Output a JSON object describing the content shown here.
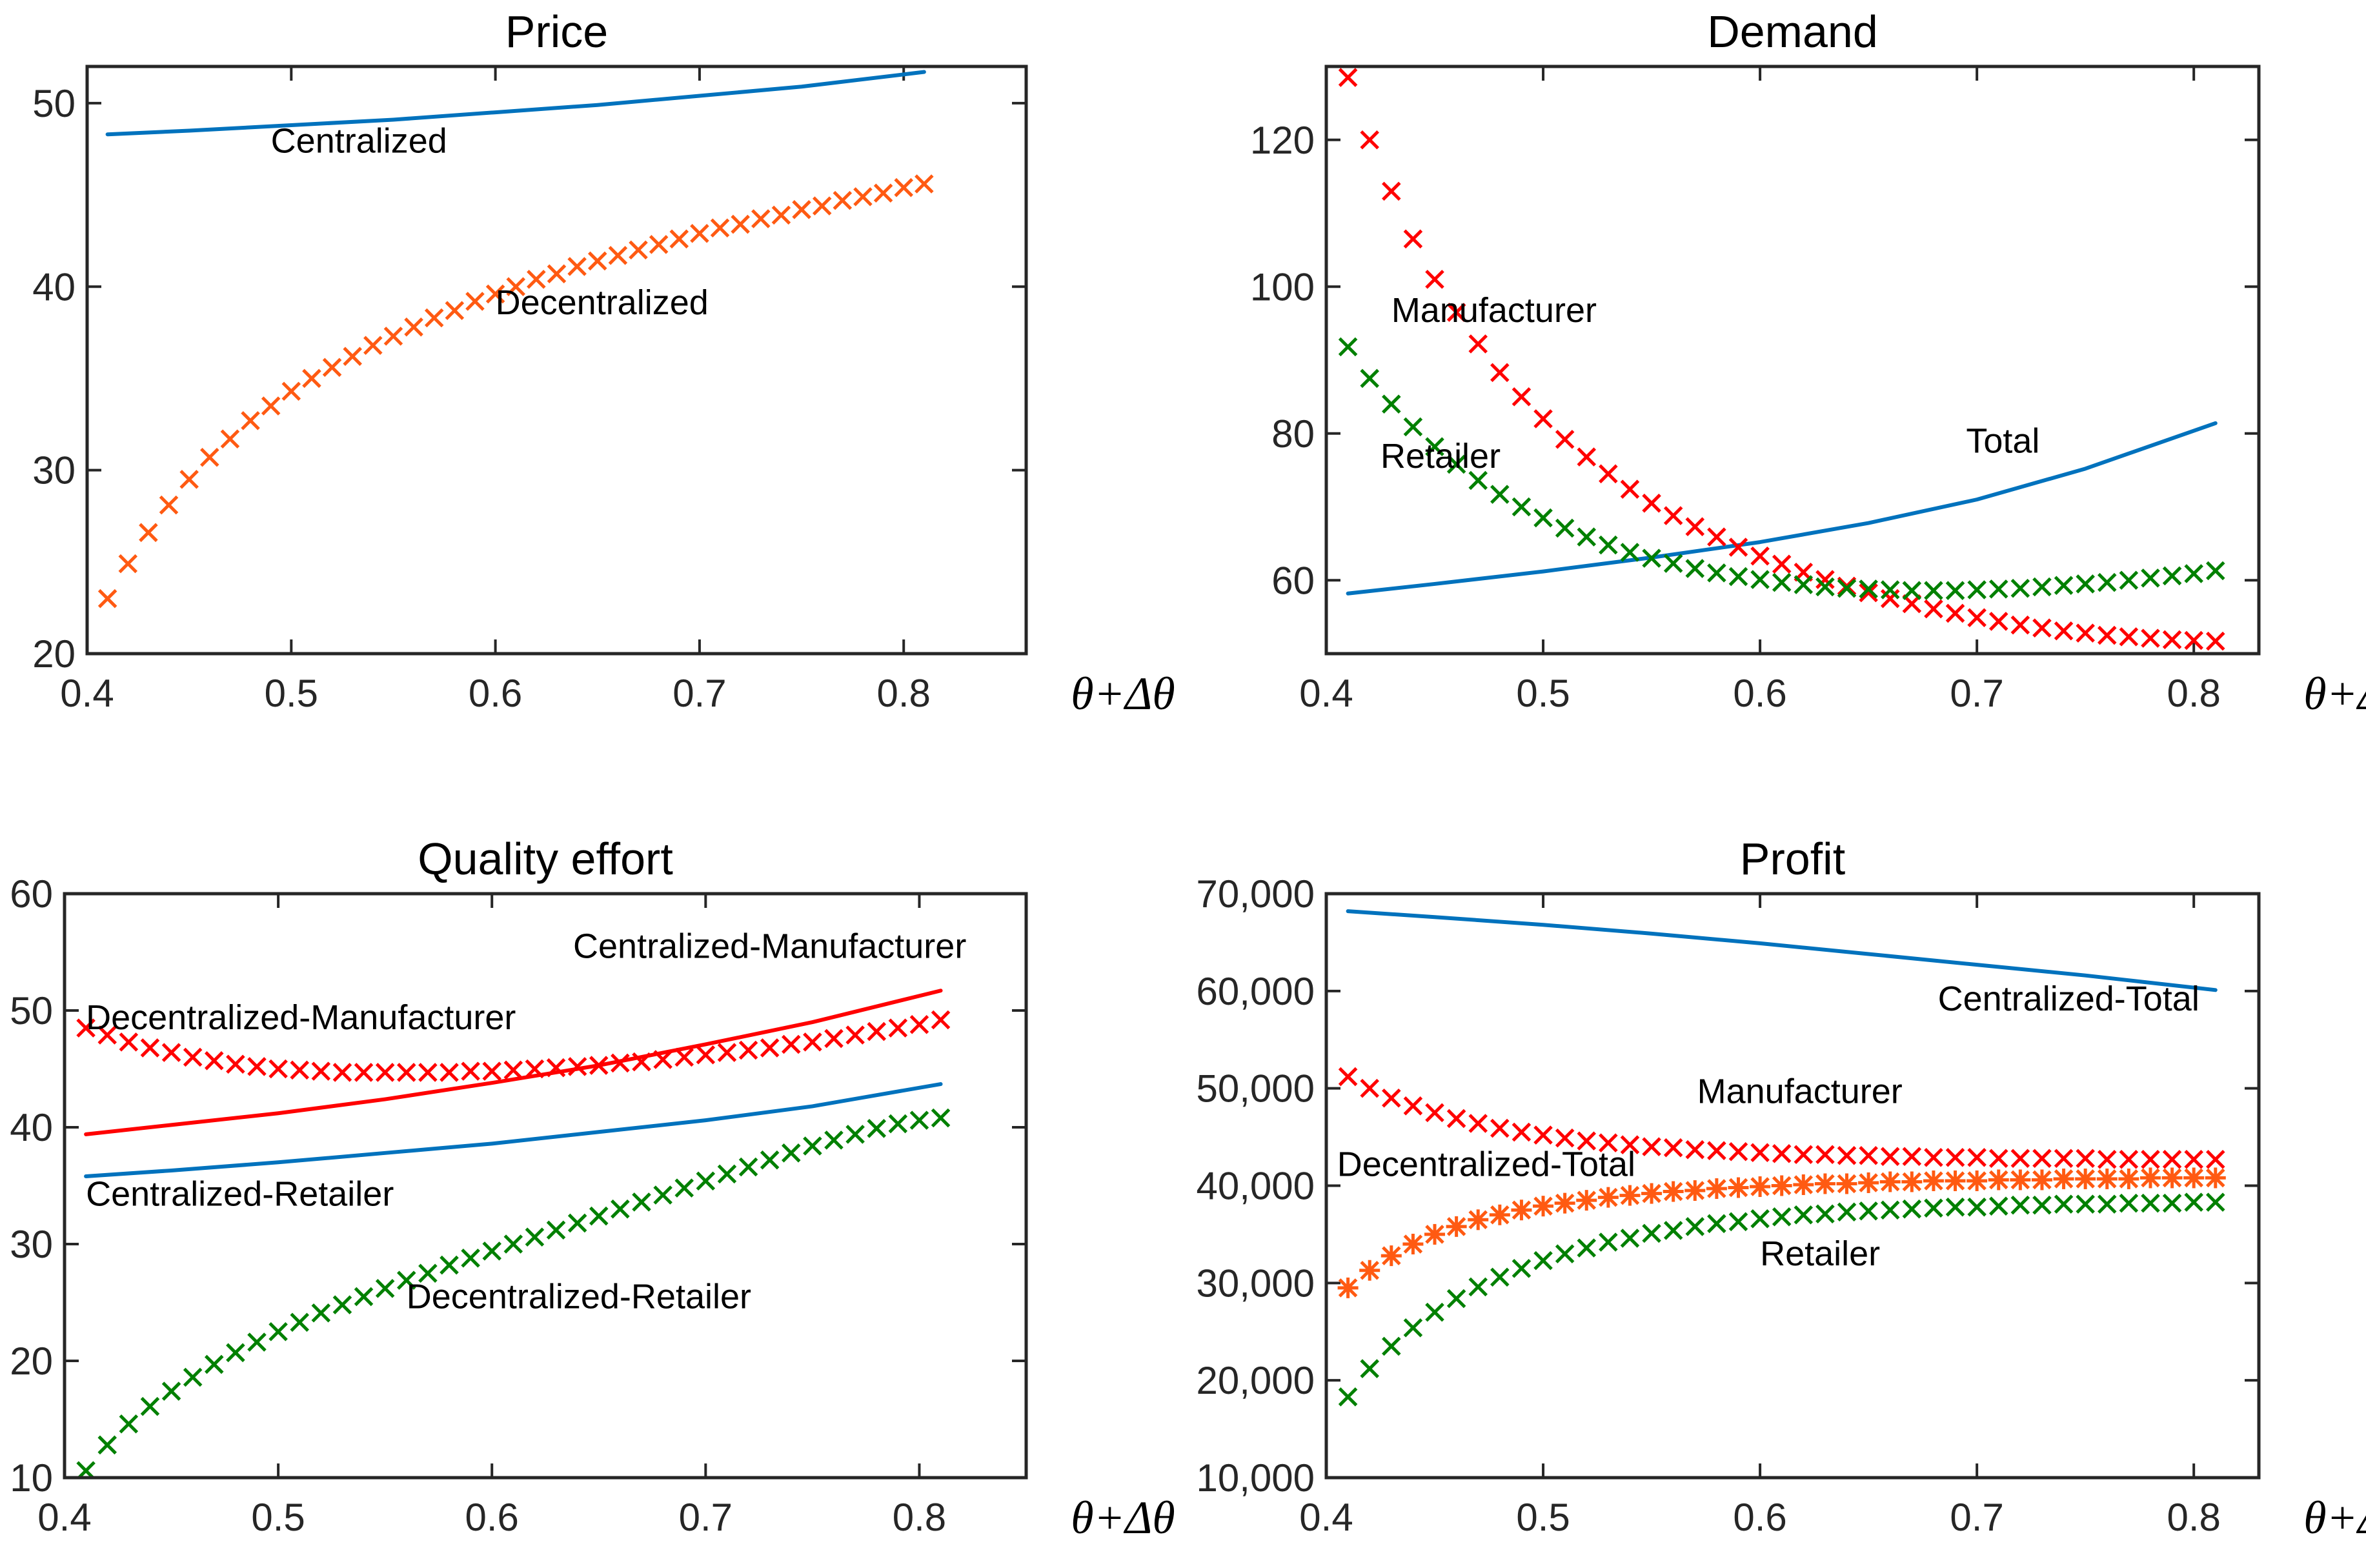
{
  "colors": {
    "blue": "#0072BD",
    "red": "#FF0000",
    "orange": "#FF5A12",
    "green": "#008000"
  },
  "chart_data": [
    {
      "type": "line",
      "title": "Price",
      "xlabel": "θ+Δθ",
      "xlim": [
        0.4,
        0.86
      ],
      "ylim": [
        20,
        52
      ],
      "xticks": [
        "0.4",
        "0.5",
        "0.6",
        "0.7",
        "0.8"
      ],
      "yticks": [
        "20",
        "30",
        "40",
        "50"
      ],
      "series": [
        {
          "name": "Centralized",
          "style": "line",
          "color": "blue",
          "x": [
            0.41,
            0.45,
            0.5,
            0.55,
            0.6,
            0.65,
            0.7,
            0.75,
            0.81
          ],
          "y": [
            48.3,
            48.5,
            48.8,
            49.1,
            49.5,
            49.9,
            50.4,
            50.9,
            51.7
          ]
        },
        {
          "name": "Decentralized",
          "style": "x",
          "color": "orange",
          "x": [
            0.41,
            0.42,
            0.43,
            0.44,
            0.45,
            0.46,
            0.47,
            0.48,
            0.49,
            0.5,
            0.51,
            0.52,
            0.53,
            0.54,
            0.55,
            0.56,
            0.57,
            0.58,
            0.59,
            0.6,
            0.61,
            0.62,
            0.63,
            0.64,
            0.65,
            0.66,
            0.67,
            0.68,
            0.69,
            0.7,
            0.71,
            0.72,
            0.73,
            0.74,
            0.75,
            0.76,
            0.77,
            0.78,
            0.79,
            0.8,
            0.81
          ],
          "y": [
            23.0,
            24.9,
            26.6,
            28.1,
            29.5,
            30.7,
            31.7,
            32.7,
            33.5,
            34.3,
            35.0,
            35.6,
            36.2,
            36.8,
            37.3,
            37.8,
            38.3,
            38.7,
            39.2,
            39.6,
            40.0,
            40.4,
            40.7,
            41.1,
            41.4,
            41.7,
            42.0,
            42.3,
            42.6,
            42.9,
            43.2,
            43.4,
            43.7,
            43.9,
            44.2,
            44.4,
            44.7,
            44.9,
            45.1,
            45.4,
            45.6
          ]
        }
      ],
      "annotations": [
        {
          "text": "Centralized",
          "x": 0.49,
          "y": 47.3
        },
        {
          "text": "Decentralized",
          "x": 0.6,
          "y": 38.5
        }
      ]
    },
    {
      "type": "line",
      "title": "Demand",
      "xlabel": "θ+Δθ",
      "xlim": [
        0.4,
        0.83
      ],
      "ylim": [
        50,
        130
      ],
      "xticks": [
        "0.4",
        "0.5",
        "0.6",
        "0.7",
        "0.8"
      ],
      "yticks": [
        "60",
        "80",
        "100",
        "120"
      ],
      "series": [
        {
          "name": "Total",
          "style": "line",
          "color": "blue",
          "x": [
            0.41,
            0.45,
            0.5,
            0.55,
            0.6,
            0.65,
            0.7,
            0.75,
            0.81
          ],
          "y": [
            58.2,
            59.5,
            61.2,
            63.1,
            65.2,
            67.8,
            71.0,
            75.2,
            81.4
          ]
        },
        {
          "name": "Manufacturer",
          "style": "x",
          "color": "red",
          "x": [
            0.41,
            0.42,
            0.43,
            0.44,
            0.45,
            0.46,
            0.47,
            0.48,
            0.49,
            0.5,
            0.51,
            0.52,
            0.53,
            0.54,
            0.55,
            0.56,
            0.57,
            0.58,
            0.59,
            0.6,
            0.61,
            0.62,
            0.63,
            0.64,
            0.65,
            0.66,
            0.67,
            0.68,
            0.69,
            0.7,
            0.71,
            0.72,
            0.73,
            0.74,
            0.75,
            0.76,
            0.77,
            0.78,
            0.79,
            0.8,
            0.81
          ],
          "y": [
            128.5,
            120.0,
            113.0,
            106.5,
            101.0,
            96.5,
            92.2,
            88.3,
            85.0,
            82.0,
            79.2,
            76.8,
            74.5,
            72.4,
            70.5,
            68.8,
            67.3,
            65.9,
            64.5,
            63.3,
            62.2,
            61.1,
            60.1,
            59.2,
            58.3,
            57.5,
            56.8,
            56.1,
            55.5,
            54.9,
            54.4,
            53.9,
            53.5,
            53.1,
            52.8,
            52.5,
            52.3,
            52.1,
            51.9,
            51.8,
            51.7
          ]
        },
        {
          "name": "Retailer",
          "style": "x",
          "color": "green",
          "x": [
            0.41,
            0.42,
            0.43,
            0.44,
            0.45,
            0.46,
            0.47,
            0.48,
            0.49,
            0.5,
            0.51,
            0.52,
            0.53,
            0.54,
            0.55,
            0.56,
            0.57,
            0.58,
            0.59,
            0.6,
            0.61,
            0.62,
            0.63,
            0.64,
            0.65,
            0.66,
            0.67,
            0.68,
            0.69,
            0.7,
            0.71,
            0.72,
            0.73,
            0.74,
            0.75,
            0.76,
            0.77,
            0.78,
            0.79,
            0.8,
            0.81
          ],
          "y": [
            91.8,
            87.5,
            84.0,
            80.9,
            78.2,
            75.8,
            73.6,
            71.7,
            70.0,
            68.5,
            67.1,
            65.9,
            64.8,
            63.8,
            63.0,
            62.3,
            61.6,
            61.0,
            60.5,
            60.1,
            59.7,
            59.4,
            59.1,
            58.9,
            58.8,
            58.7,
            58.6,
            58.6,
            58.6,
            58.7,
            58.8,
            58.9,
            59.1,
            59.3,
            59.5,
            59.7,
            60.0,
            60.3,
            60.6,
            60.9,
            61.3
          ]
        }
      ],
      "annotations": [
        {
          "text": "Manufacturer",
          "x": 0.43,
          "y": 95.2
        },
        {
          "text": "Retailer",
          "x": 0.425,
          "y": 75.3
        },
        {
          "text": "Total",
          "x": 0.695,
          "y": 77.4
        }
      ]
    },
    {
      "type": "line",
      "title": "Quality effort",
      "xlabel": "θ+Δθ",
      "xlim": [
        0.4,
        0.85
      ],
      "ylim": [
        10,
        60
      ],
      "xticks": [
        "0.4",
        "0.5",
        "0.6",
        "0.7",
        "0.8"
      ],
      "yticks": [
        "10",
        "20",
        "30",
        "40",
        "50",
        "60"
      ],
      "series": [
        {
          "name": "Centralized-Manufacturer",
          "style": "line",
          "color": "red",
          "x": [
            0.41,
            0.45,
            0.5,
            0.55,
            0.6,
            0.65,
            0.7,
            0.75,
            0.81
          ],
          "y": [
            39.4,
            40.2,
            41.2,
            42.4,
            43.8,
            45.3,
            47.1,
            49.0,
            51.7
          ]
        },
        {
          "name": "Centralized-Retailer",
          "style": "line",
          "color": "blue",
          "x": [
            0.41,
            0.45,
            0.5,
            0.55,
            0.6,
            0.65,
            0.7,
            0.75,
            0.81
          ],
          "y": [
            35.8,
            36.3,
            37.0,
            37.8,
            38.6,
            39.6,
            40.6,
            41.8,
            43.7
          ]
        },
        {
          "name": "Decentralized-Manufacturer",
          "style": "x",
          "color": "red",
          "x": [
            0.41,
            0.42,
            0.43,
            0.44,
            0.45,
            0.46,
            0.47,
            0.48,
            0.49,
            0.5,
            0.51,
            0.52,
            0.53,
            0.54,
            0.55,
            0.56,
            0.57,
            0.58,
            0.59,
            0.6,
            0.61,
            0.62,
            0.63,
            0.64,
            0.65,
            0.66,
            0.67,
            0.68,
            0.69,
            0.7,
            0.71,
            0.72,
            0.73,
            0.74,
            0.75,
            0.76,
            0.77,
            0.78,
            0.79,
            0.8,
            0.81
          ],
          "y": [
            48.5,
            47.9,
            47.3,
            46.8,
            46.4,
            46.0,
            45.7,
            45.4,
            45.2,
            45.0,
            44.9,
            44.8,
            44.7,
            44.7,
            44.7,
            44.7,
            44.7,
            44.7,
            44.8,
            44.8,
            44.9,
            45.0,
            45.1,
            45.2,
            45.3,
            45.5,
            45.6,
            45.8,
            46.0,
            46.2,
            46.4,
            46.6,
            46.8,
            47.1,
            47.3,
            47.6,
            47.9,
            48.2,
            48.5,
            48.8,
            49.2
          ]
        },
        {
          "name": "Decentralized-Retailer",
          "style": "x",
          "color": "green",
          "x": [
            0.41,
            0.42,
            0.43,
            0.44,
            0.45,
            0.46,
            0.47,
            0.48,
            0.49,
            0.5,
            0.51,
            0.52,
            0.53,
            0.54,
            0.55,
            0.56,
            0.57,
            0.58,
            0.59,
            0.6,
            0.61,
            0.62,
            0.63,
            0.64,
            0.65,
            0.66,
            0.67,
            0.68,
            0.69,
            0.7,
            0.71,
            0.72,
            0.73,
            0.74,
            0.75,
            0.76,
            0.77,
            0.78,
            0.79,
            0.8,
            0.81
          ],
          "y": [
            10.6,
            12.8,
            14.6,
            16.1,
            17.4,
            18.6,
            19.7,
            20.7,
            21.6,
            22.5,
            23.3,
            24.1,
            24.8,
            25.5,
            26.2,
            26.9,
            27.5,
            28.2,
            28.8,
            29.4,
            30.0,
            30.6,
            31.2,
            31.8,
            32.4,
            33.0,
            33.6,
            34.2,
            34.8,
            35.4,
            36.0,
            36.6,
            37.2,
            37.8,
            38.4,
            38.9,
            39.4,
            39.9,
            40.3,
            40.6,
            40.8
          ]
        }
      ],
      "annotations": [
        {
          "text": "Centralized-Manufacturer",
          "x": 0.638,
          "y": 54.5
        },
        {
          "text": "Decentralized-Manufacturer",
          "x": 0.41,
          "y": 48.4
        },
        {
          "text": "Centralized-Retailer",
          "x": 0.41,
          "y": 33.3
        },
        {
          "text": "Decentralized-Retailer",
          "x": 0.56,
          "y": 24.5
        }
      ]
    },
    {
      "type": "line",
      "title": "Profit",
      "xlabel": "θ+Δθ",
      "xlim": [
        0.4,
        0.83
      ],
      "ylim": [
        10000,
        70000
      ],
      "xticks": [
        "0.4",
        "0.5",
        "0.6",
        "0.7",
        "0.8"
      ],
      "yticks": [
        "10,000",
        "20,000",
        "30,000",
        "40,000",
        "50,000",
        "60,000",
        "70,000"
      ],
      "series": [
        {
          "name": "Centralized-Total",
          "style": "line",
          "color": "blue",
          "x": [
            0.41,
            0.45,
            0.5,
            0.55,
            0.6,
            0.65,
            0.7,
            0.75,
            0.81
          ],
          "y": [
            68200,
            67600,
            66800,
            65900,
            64900,
            63800,
            62700,
            61600,
            60100
          ]
        },
        {
          "name": "Manufacturer",
          "style": "x",
          "color": "red",
          "x": [
            0.41,
            0.42,
            0.43,
            0.44,
            0.45,
            0.46,
            0.47,
            0.48,
            0.49,
            0.5,
            0.51,
            0.52,
            0.53,
            0.54,
            0.55,
            0.56,
            0.57,
            0.58,
            0.59,
            0.6,
            0.61,
            0.62,
            0.63,
            0.64,
            0.65,
            0.66,
            0.67,
            0.68,
            0.69,
            0.7,
            0.71,
            0.72,
            0.73,
            0.74,
            0.75,
            0.76,
            0.77,
            0.78,
            0.79,
            0.8,
            0.81
          ],
          "y": [
            51200,
            50000,
            49000,
            48200,
            47500,
            46900,
            46400,
            45900,
            45500,
            45200,
            44900,
            44600,
            44400,
            44200,
            44000,
            43900,
            43700,
            43600,
            43500,
            43400,
            43300,
            43200,
            43200,
            43100,
            43100,
            43000,
            43000,
            42900,
            42900,
            42900,
            42800,
            42800,
            42800,
            42800,
            42800,
            42700,
            42700,
            42700,
            42700,
            42700,
            42700
          ]
        },
        {
          "name": "Decentralized-Total",
          "style": "star",
          "color": "orange",
          "x": [
            0.41,
            0.42,
            0.43,
            0.44,
            0.45,
            0.46,
            0.47,
            0.48,
            0.49,
            0.5,
            0.51,
            0.52,
            0.53,
            0.54,
            0.55,
            0.56,
            0.57,
            0.58,
            0.59,
            0.6,
            0.61,
            0.62,
            0.63,
            0.64,
            0.65,
            0.66,
            0.67,
            0.68,
            0.69,
            0.7,
            0.71,
            0.72,
            0.73,
            0.74,
            0.75,
            0.76,
            0.77,
            0.78,
            0.79,
            0.8,
            0.81
          ],
          "y": [
            29500,
            31300,
            32800,
            34000,
            35000,
            35800,
            36500,
            37000,
            37500,
            37900,
            38200,
            38500,
            38800,
            39000,
            39200,
            39400,
            39500,
            39700,
            39800,
            39900,
            40000,
            40100,
            40200,
            40200,
            40300,
            40400,
            40400,
            40500,
            40500,
            40500,
            40600,
            40600,
            40600,
            40700,
            40700,
            40700,
            40700,
            40800,
            40800,
            40800,
            40800
          ]
        },
        {
          "name": "Retailer",
          "style": "x",
          "color": "green",
          "x": [
            0.41,
            0.42,
            0.43,
            0.44,
            0.45,
            0.46,
            0.47,
            0.48,
            0.49,
            0.5,
            0.51,
            0.52,
            0.53,
            0.54,
            0.55,
            0.56,
            0.57,
            0.58,
            0.59,
            0.6,
            0.61,
            0.62,
            0.63,
            0.64,
            0.65,
            0.66,
            0.67,
            0.68,
            0.69,
            0.7,
            0.71,
            0.72,
            0.73,
            0.74,
            0.75,
            0.76,
            0.77,
            0.78,
            0.79,
            0.8,
            0.81
          ],
          "y": [
            18300,
            21200,
            23500,
            25400,
            27000,
            28400,
            29600,
            30600,
            31500,
            32300,
            33000,
            33600,
            34200,
            34600,
            35100,
            35400,
            35800,
            36100,
            36300,
            36600,
            36800,
            37000,
            37100,
            37300,
            37400,
            37500,
            37600,
            37700,
            37800,
            37800,
            37900,
            38000,
            38000,
            38100,
            38100,
            38100,
            38200,
            38200,
            38200,
            38300,
            38300
          ]
        }
      ],
      "annotations": [
        {
          "text": "Centralized-Total",
          "x": 0.682,
          "y": 58000
        },
        {
          "text": "Manufacturer",
          "x": 0.571,
          "y": 48500
        },
        {
          "text": "Decentralized-Total",
          "x": 0.405,
          "y": 41000
        },
        {
          "text": "Retailer",
          "x": 0.6,
          "y": 31800
        }
      ]
    }
  ]
}
